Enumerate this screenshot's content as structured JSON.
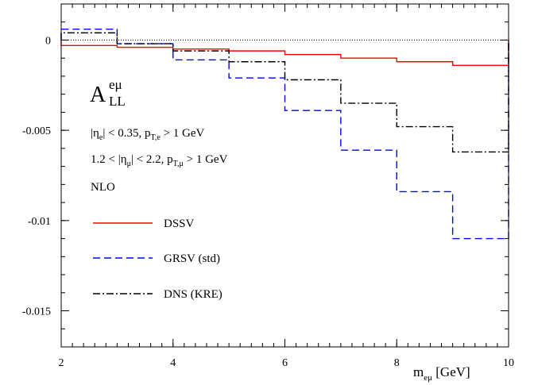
{
  "chart_data": {
    "type": "line",
    "step": true,
    "xlabel_main": "m",
    "xlabel_sub": "eμ",
    "xlabel_unit": " [GeV]",
    "ylabel": "",
    "xlim": [
      2,
      10
    ],
    "ylim": [
      -0.017,
      0.002
    ],
    "x_ticks": [
      2,
      4,
      6,
      8,
      10
    ],
    "x_tick_labels": [
      "2",
      "4",
      "6",
      "8",
      "10"
    ],
    "y_ticks": [
      0,
      -0.005,
      -0.01,
      -0.015
    ],
    "y_tick_labels": [
      "0",
      "-0.005",
      "-0.01",
      "-0.015"
    ],
    "zero_line": true,
    "bin_edges": [
      2,
      3,
      4,
      5,
      6,
      7,
      8,
      9,
      10
    ],
    "series": [
      {
        "name": "DSSV",
        "color": "#ff0000",
        "dash": "solid",
        "values": [
          -0.0003,
          -0.0004,
          -0.0005,
          -0.0006,
          -0.0008,
          -0.001,
          -0.0012,
          -0.0014
        ]
      },
      {
        "name": "GRSV (std)",
        "color": "#0000ff",
        "dash": "dashed",
        "values": [
          0.0006,
          -0.0002,
          -0.0011,
          -0.0021,
          -0.0039,
          -0.0061,
          -0.0084,
          -0.011
        ]
      },
      {
        "name": "DNS (KRE)",
        "color": "#000000",
        "dash": "dashdot",
        "values": [
          0.0004,
          -0.0002,
          -0.0006,
          -0.0012,
          -0.0022,
          -0.0035,
          -0.0048,
          -0.0062
        ]
      }
    ],
    "annotations": {
      "title_main": "A",
      "title_sup": "eμ",
      "title_sub": "LL",
      "cut_e": "|η_e| < 0.35, p_T,e > 1 GeV",
      "cut_mu": "1.2 < |η_μ| < 2.2, p_T,μ > 1 GeV",
      "order": "NLO"
    },
    "legend_position": "left"
  }
}
